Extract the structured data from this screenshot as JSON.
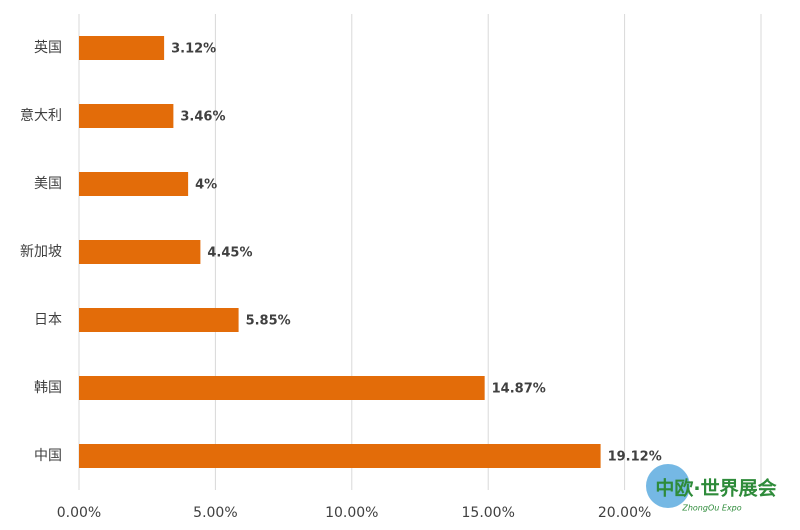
{
  "chart_data": {
    "type": "bar",
    "orientation": "horizontal",
    "categories": [
      "英国",
      "意大利",
      "美国",
      "新加坡",
      "日本",
      "韩国",
      "中国"
    ],
    "values": [
      3.12,
      3.46,
      4,
      4.45,
      5.85,
      14.87,
      19.12
    ],
    "value_labels": [
      "3.12%",
      "3.46%",
      "4%",
      "4.45%",
      "5.85%",
      "14.87%",
      "19.12%"
    ],
    "color": "#e36c09",
    "xlim": [
      0,
      25
    ],
    "xticks": [
      {
        "value": 0,
        "label": "0.00%"
      },
      {
        "value": 5,
        "label": "5.00%"
      },
      {
        "value": 10,
        "label": "10.00%"
      },
      {
        "value": 15,
        "label": "15.00%"
      },
      {
        "value": 20,
        "label": "20.00%"
      }
    ],
    "grid": true
  },
  "watermark": {
    "title": "中欧·世界展会",
    "subtitle": "ZhongOu Expo"
  }
}
